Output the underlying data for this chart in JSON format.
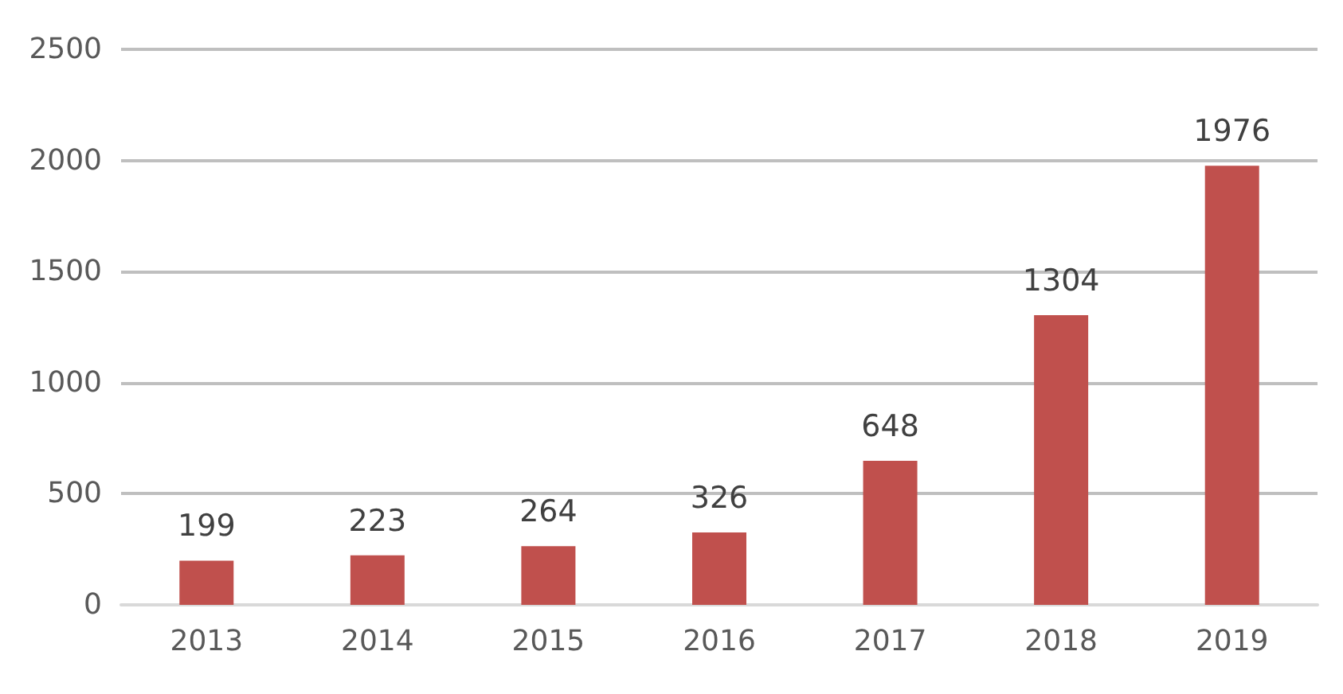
{
  "chart_data": {
    "type": "bar",
    "categories": [
      "2013",
      "2014",
      "2015",
      "2016",
      "2017",
      "2018",
      "2019"
    ],
    "values": [
      199,
      223,
      264,
      326,
      648,
      1304,
      1976
    ],
    "color": "#c0504d",
    "ylim": [
      0,
      2500
    ],
    "yticks": [
      0,
      500,
      1000,
      1500,
      2000,
      2500
    ],
    "grid": "y",
    "data_labels": true
  }
}
